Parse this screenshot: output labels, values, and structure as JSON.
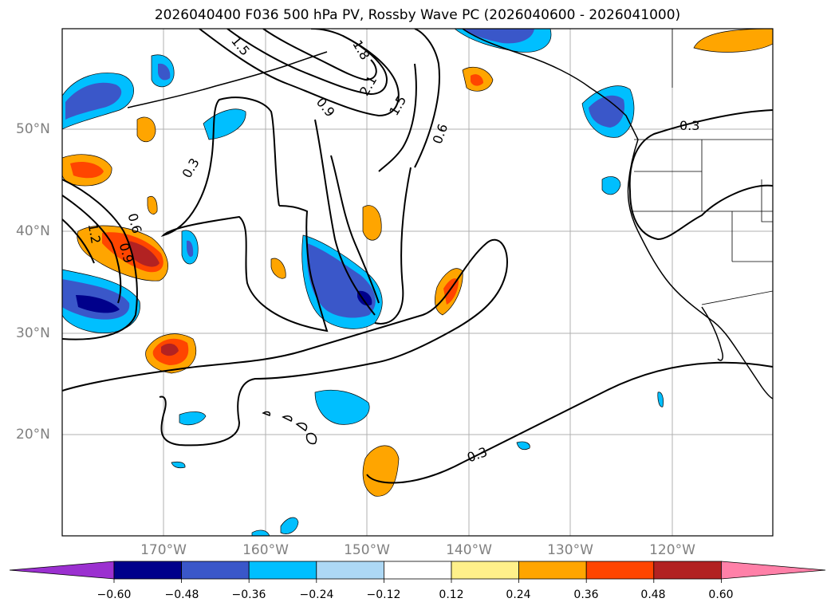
{
  "title": "2026040400 F036 500 hPa PV, Rossby Wave PC (2026040600 - 2026041000)",
  "map": {
    "lat_labels": [
      "50°N",
      "40°N",
      "30°N",
      "20°N"
    ],
    "lon_labels": [
      "170°W",
      "160°W",
      "150°W",
      "140°W",
      "130°W",
      "120°W"
    ],
    "contour_labels": [
      "0.3",
      "0.6",
      "0.9",
      "1.2",
      "1.5",
      "1.8",
      "2.1"
    ],
    "field_colors": {
      "neg_060": "#00008b",
      "neg_048": "#3a57c9",
      "neg_036": "#00bfff",
      "neg_024": "#add8f5",
      "pos_012": "#fff08a",
      "pos_024": "#ffa500",
      "pos_036": "#ff4500",
      "pos_048": "#b22222",
      "pos_060": "#ff80a8"
    }
  },
  "colorbar": {
    "colors": [
      "#9b30d0",
      "#00008b",
      "#3a57c9",
      "#00bfff",
      "#add8f5",
      "#ffffff",
      "#fff08a",
      "#ffa500",
      "#ff4500",
      "#b22222",
      "#ff80a8"
    ],
    "tick_labels": [
      "−0.60",
      "−0.48",
      "−0.36",
      "−0.24",
      "−0.12",
      "0.12",
      "0.24",
      "0.36",
      "0.48",
      "0.60"
    ]
  }
}
